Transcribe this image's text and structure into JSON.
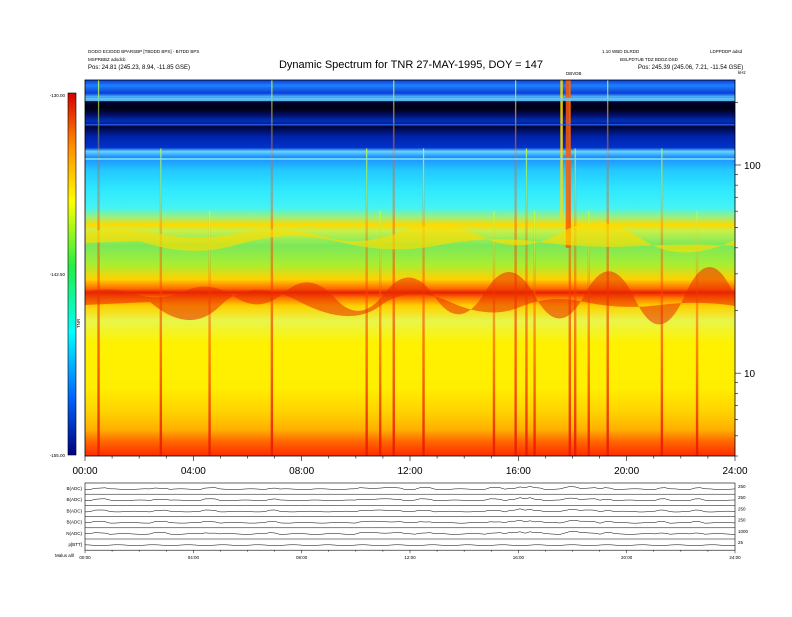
{
  "header": {
    "left_line1": "DODO ECIDDD BPARSBP [TBDDD BPS] - BITDD BPS",
    "left_line2": "MSPRBBZ adsdcb",
    "left_line3": "Pos:  24.81 (245.23, 8.94, -11.85 GSE)",
    "right_line1": "1.10 WBD DLRDD",
    "right_line2": "LDPPDDP adsd",
    "right_line3": "BSLPDTUB  TDZ BDDZ.DSD",
    "right_line4": "Pos:  245.39 (245.06, 7.21, -11.54 GSE)",
    "event_label": "DBVDB",
    "freq_unit": "kHz"
  },
  "chart_data": {
    "type": "heatmap",
    "title": "Dynamic Spectrum for TNR 27-MAY-1995, DOY = 147",
    "x_ticks": [
      "00:00",
      "04:00",
      "08:00",
      "12:00",
      "16:00",
      "20:00",
      "24:00"
    ],
    "xlim_hours": [
      0,
      24
    ],
    "y_scale": "log",
    "y_ticks": [
      10,
      100
    ],
    "y_tick_labels": [
      "10",
      "100"
    ],
    "ylim_khz": [
      4,
      256
    ],
    "colorbar": {
      "label": "TNR",
      "ticks": [
        "-130.00",
        "-142.50",
        "-155.00"
      ],
      "colors": [
        "#d40000",
        "#ff8800",
        "#ffff00",
        "#22ee44",
        "#00ffff",
        "#0066ff",
        "#000080"
      ]
    },
    "spectral_bands_khz": [
      {
        "name": "low-freq red",
        "from": 4,
        "to": 5.5,
        "color": "#ff4400"
      },
      {
        "name": "yellow",
        "from": 5.5,
        "to": 18,
        "color": "#ffee00"
      },
      {
        "name": "red band",
        "from": 19,
        "to": 24,
        "color": "#ff5500"
      },
      {
        "name": "green band",
        "from": 30,
        "to": 50,
        "color": "#66ee33"
      },
      {
        "name": "cyan",
        "from": 55,
        "to": 100,
        "color": "#33e6ff"
      },
      {
        "name": "blue",
        "from": 100,
        "to": 256,
        "color": "#0044dd"
      }
    ],
    "bursts_hours": [
      0.5,
      2.8,
      4.6,
      6.9,
      10.4,
      10.9,
      11.4,
      12.5,
      15.1,
      15.9,
      16.3,
      16.6,
      17.9,
      18.1,
      18.6,
      19.3,
      21.3,
      22.6
    ]
  },
  "bottom_panels": {
    "rows": [
      {
        "label": "B(ADC)",
        "right": "250"
      },
      {
        "label": "B(ADC)",
        "right": "250"
      },
      {
        "label": "B(ADC)",
        "right": "250"
      },
      {
        "label": "B(ADC)",
        "right": "250"
      },
      {
        "label": "N(ADC)",
        "right": "1000"
      },
      {
        "label": "p[BTT]",
        "right": "25"
      }
    ],
    "x_ticks": [
      "00:00",
      "04:00",
      "08:00",
      "12:00",
      "16:00",
      "20:00",
      "24:00"
    ],
    "footer_left": "Malus   alll"
  }
}
